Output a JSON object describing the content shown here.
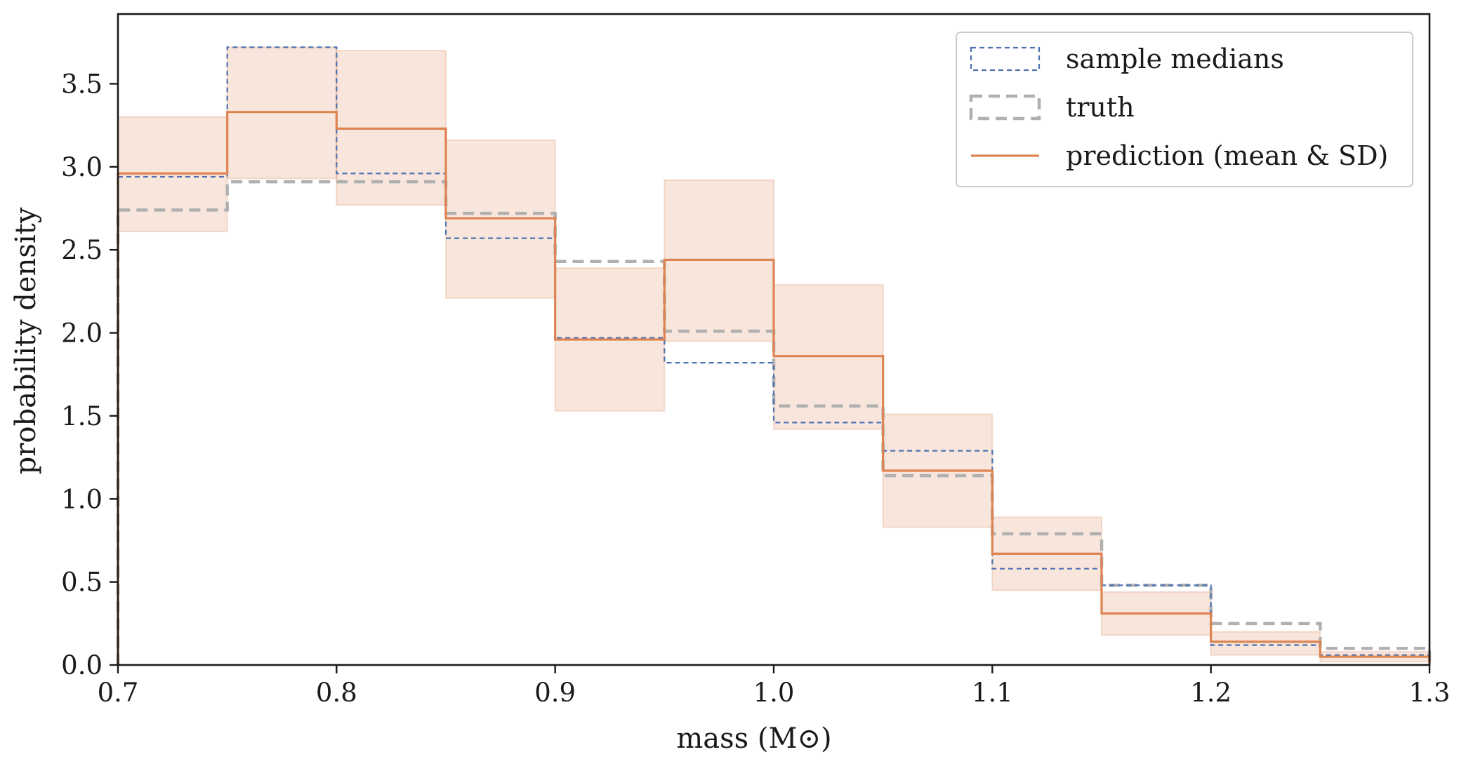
{
  "chart_data": {
    "type": "histogram",
    "title": "",
    "xlabel": "mass (M⊙)",
    "ylabel": "probability density",
    "xlim": [
      0.7,
      1.3
    ],
    "ylim": [
      0.0,
      3.92
    ],
    "xticks": [
      "0.7",
      "0.8",
      "0.9",
      "1.0",
      "1.1",
      "1.2",
      "1.3"
    ],
    "xtick_values": [
      0.7,
      0.8,
      0.9,
      1.0,
      1.1,
      1.2,
      1.3
    ],
    "yticks": [
      "0.0",
      "0.5",
      "1.0",
      "1.5",
      "2.0",
      "2.5",
      "3.0",
      "3.5"
    ],
    "ytick_values": [
      0.0,
      0.5,
      1.0,
      1.5,
      2.0,
      2.5,
      3.0,
      3.5
    ],
    "bin_edges": [
      0.7,
      0.75,
      0.8,
      0.85,
      0.9,
      0.95,
      1.0,
      1.05,
      1.1,
      1.15,
      1.2,
      1.25,
      1.3
    ],
    "grid": false,
    "legend_position": "top-right",
    "series": [
      {
        "name": "sample medians",
        "style": "dashed-thin",
        "color": "#4c72b0",
        "values": [
          2.94,
          3.72,
          2.96,
          2.57,
          1.97,
          1.82,
          1.46,
          1.29,
          0.58,
          0.48,
          0.12,
          0.06
        ]
      },
      {
        "name": "truth",
        "style": "dashed-thick",
        "color": "#b0b0b0",
        "values": [
          2.74,
          2.91,
          2.91,
          2.72,
          2.43,
          2.01,
          1.56,
          1.14,
          0.79,
          0.48,
          0.25,
          0.1
        ]
      },
      {
        "name": "prediction (mean & SD)",
        "style": "solid",
        "color": "#dd8452",
        "values": [
          2.96,
          3.33,
          3.23,
          2.69,
          1.96,
          2.44,
          1.86,
          1.17,
          0.67,
          0.31,
          0.14,
          0.05
        ],
        "lower": [
          2.61,
          2.93,
          2.77,
          2.21,
          1.53,
          1.95,
          1.42,
          0.83,
          0.45,
          0.18,
          0.06,
          0.02
        ],
        "upper": [
          3.3,
          3.72,
          3.7,
          3.16,
          2.39,
          2.92,
          2.29,
          1.51,
          0.89,
          0.44,
          0.2,
          0.08
        ]
      }
    ]
  }
}
